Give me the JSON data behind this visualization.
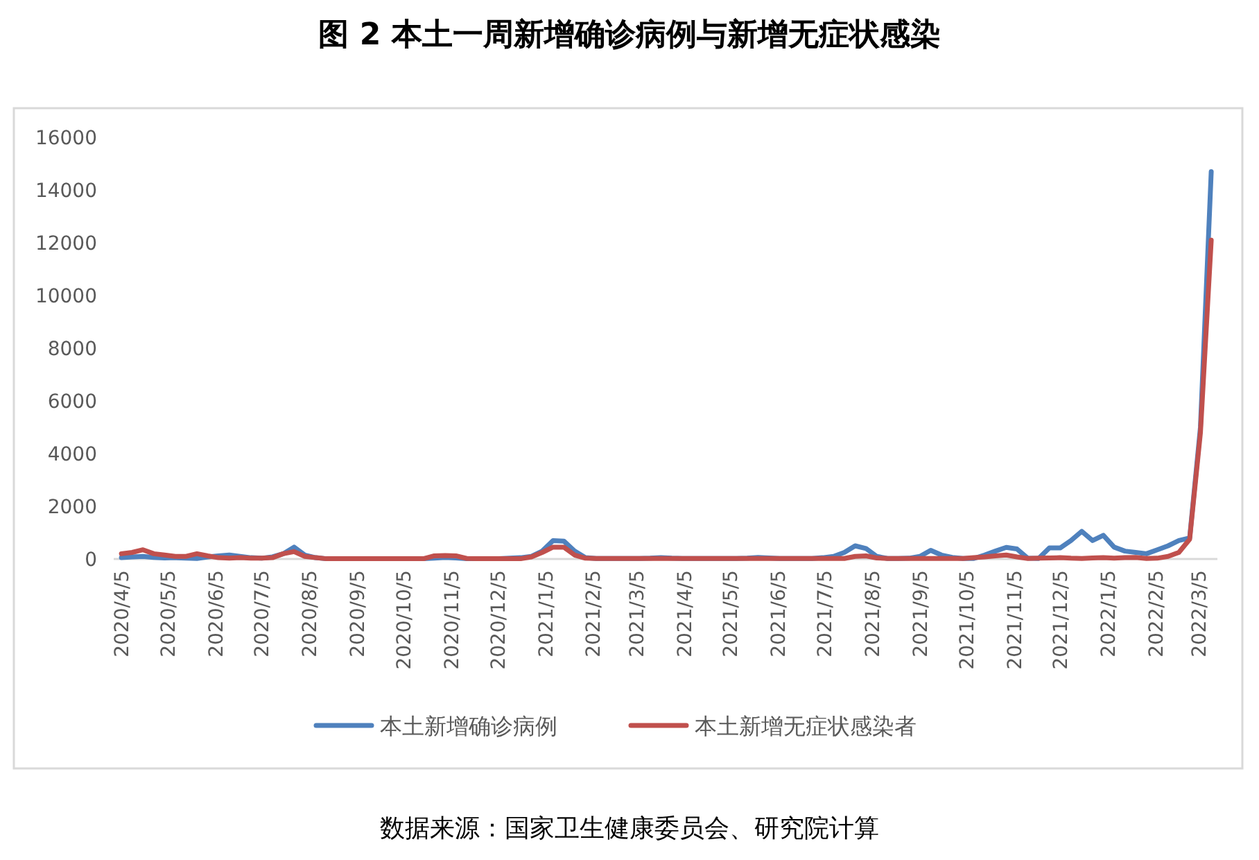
{
  "chart_data": {
    "type": "line",
    "title": "图 2 本土一周新增确诊病例与新增无症状感染",
    "annotations": [
      "数据来源：国家卫生健康委员会、研究院计算"
    ],
    "x": [
      "2020-04-05",
      "2020-04-12",
      "2020-04-19",
      "2020-04-26",
      "2020-05-03",
      "2020-05-10",
      "2020-05-17",
      "2020-05-24",
      "2020-05-31",
      "2020-06-07",
      "2020-06-14",
      "2020-06-21",
      "2020-06-28",
      "2020-07-05",
      "2020-07-12",
      "2020-07-19",
      "2020-07-26",
      "2020-08-02",
      "2020-08-09",
      "2020-08-16",
      "2020-08-23",
      "2020-08-30",
      "2020-09-06",
      "2020-09-13",
      "2020-09-20",
      "2020-09-27",
      "2020-10-04",
      "2020-10-11",
      "2020-10-18",
      "2020-10-25",
      "2020-11-01",
      "2020-11-08",
      "2020-11-15",
      "2020-11-22",
      "2020-11-29",
      "2020-12-06",
      "2020-12-13",
      "2020-12-20",
      "2020-12-27",
      "2021-01-03",
      "2021-01-10",
      "2021-01-17",
      "2021-01-24",
      "2021-01-31",
      "2021-02-07",
      "2021-02-14",
      "2021-02-21",
      "2021-02-28",
      "2021-03-07",
      "2021-03-14",
      "2021-03-21",
      "2021-03-28",
      "2021-04-04",
      "2021-04-11",
      "2021-04-18",
      "2021-04-25",
      "2021-05-02",
      "2021-05-09",
      "2021-05-16",
      "2021-05-23",
      "2021-05-30",
      "2021-06-06",
      "2021-06-13",
      "2021-06-20",
      "2021-06-27",
      "2021-07-04",
      "2021-07-11",
      "2021-07-18",
      "2021-07-25",
      "2021-08-01",
      "2021-08-08",
      "2021-08-15",
      "2021-08-22",
      "2021-08-29",
      "2021-09-05",
      "2021-09-12",
      "2021-09-19",
      "2021-09-26",
      "2021-10-03",
      "2021-10-10",
      "2021-10-17",
      "2021-10-24",
      "2021-10-31",
      "2021-11-07",
      "2021-11-14",
      "2021-11-21",
      "2021-11-28",
      "2021-12-05",
      "2021-12-12",
      "2021-12-19",
      "2021-12-26",
      "2022-01-02",
      "2022-01-09",
      "2022-01-16",
      "2022-01-23",
      "2022-01-30",
      "2022-02-06",
      "2022-02-13",
      "2022-02-20",
      "2022-02-27",
      "2022-03-06",
      "2022-03-13"
    ],
    "series": [
      {
        "name": "本土新增确诊病例",
        "color": "#4f81bd",
        "values": [
          50,
          80,
          100,
          60,
          40,
          50,
          30,
          20,
          80,
          120,
          150,
          100,
          50,
          30,
          80,
          200,
          450,
          150,
          50,
          10,
          10,
          10,
          10,
          10,
          10,
          10,
          10,
          10,
          10,
          30,
          60,
          40,
          10,
          10,
          10,
          10,
          30,
          50,
          100,
          300,
          700,
          680,
          300,
          50,
          20,
          20,
          20,
          20,
          20,
          30,
          50,
          30,
          20,
          20,
          20,
          20,
          20,
          20,
          30,
          60,
          40,
          20,
          20,
          20,
          20,
          50,
          100,
          250,
          500,
          400,
          100,
          20,
          20,
          30,
          100,
          330,
          150,
          60,
          20,
          20,
          150,
          300,
          440,
          380,
          30,
          20,
          420,
          420,
          700,
          1050,
          700,
          900,
          450,
          300,
          250,
          200,
          350,
          500,
          700,
          800,
          5000,
          14700
        ]
      },
      {
        "name": "本土新增无症状感染者",
        "color": "#c0504d",
        "values": [
          200,
          250,
          350,
          200,
          150,
          100,
          100,
          200,
          120,
          50,
          30,
          50,
          30,
          30,
          50,
          200,
          280,
          100,
          50,
          10,
          10,
          10,
          10,
          10,
          10,
          10,
          10,
          10,
          10,
          120,
          130,
          120,
          20,
          10,
          10,
          10,
          10,
          10,
          80,
          250,
          450,
          450,
          150,
          30,
          20,
          20,
          20,
          20,
          20,
          20,
          20,
          20,
          20,
          20,
          20,
          20,
          20,
          20,
          20,
          20,
          20,
          20,
          20,
          20,
          20,
          20,
          20,
          20,
          100,
          120,
          40,
          20,
          20,
          20,
          20,
          20,
          20,
          20,
          20,
          50,
          80,
          120,
          150,
          80,
          20,
          30,
          40,
          50,
          30,
          20,
          40,
          50,
          30,
          50,
          60,
          20,
          30,
          100,
          250,
          750,
          4800,
          12100
        ]
      }
    ],
    "ylim": [
      0,
      16000
    ],
    "yticks": [
      0,
      2000,
      4000,
      6000,
      8000,
      10000,
      12000,
      14000,
      16000
    ],
    "xlim": [
      "2020-03-31",
      "2022-03-17"
    ],
    "xticks": [
      {
        "value": "2020-04-05",
        "label": "2020/4/5"
      },
      {
        "value": "2020-05-05",
        "label": "2020/5/5"
      },
      {
        "value": "2020-06-05",
        "label": "2020/6/5"
      },
      {
        "value": "2020-07-05",
        "label": "2020/7/5"
      },
      {
        "value": "2020-08-05",
        "label": "2020/8/5"
      },
      {
        "value": "2020-09-05",
        "label": "2020/9/5"
      },
      {
        "value": "2020-10-05",
        "label": "2020/10/5"
      },
      {
        "value": "2020-11-05",
        "label": "2020/11/5"
      },
      {
        "value": "2020-12-05",
        "label": "2020/12/5"
      },
      {
        "value": "2021-01-05",
        "label": "2021/1/5"
      },
      {
        "value": "2021-02-05",
        "label": "2021/2/5"
      },
      {
        "value": "2021-03-05",
        "label": "2021/3/5"
      },
      {
        "value": "2021-04-05",
        "label": "2021/4/5"
      },
      {
        "value": "2021-05-05",
        "label": "2021/5/5"
      },
      {
        "value": "2021-06-05",
        "label": "2021/6/5"
      },
      {
        "value": "2021-07-05",
        "label": "2021/7/5"
      },
      {
        "value": "2021-08-05",
        "label": "2021/8/5"
      },
      {
        "value": "2021-09-05",
        "label": "2021/9/5"
      },
      {
        "value": "2021-10-05",
        "label": "2021/10/5"
      },
      {
        "value": "2021-11-05",
        "label": "2021/11/5"
      },
      {
        "value": "2021-12-05",
        "label": "2021/12/5"
      },
      {
        "value": "2022-01-05",
        "label": "2022/1/5"
      },
      {
        "value": "2022-02-05",
        "label": "2022/2/5"
      },
      {
        "value": "2022-03-05",
        "label": "2022/3/5"
      }
    ],
    "grid": false,
    "legend": "bottom",
    "marker": "none",
    "line_style": "solid"
  }
}
